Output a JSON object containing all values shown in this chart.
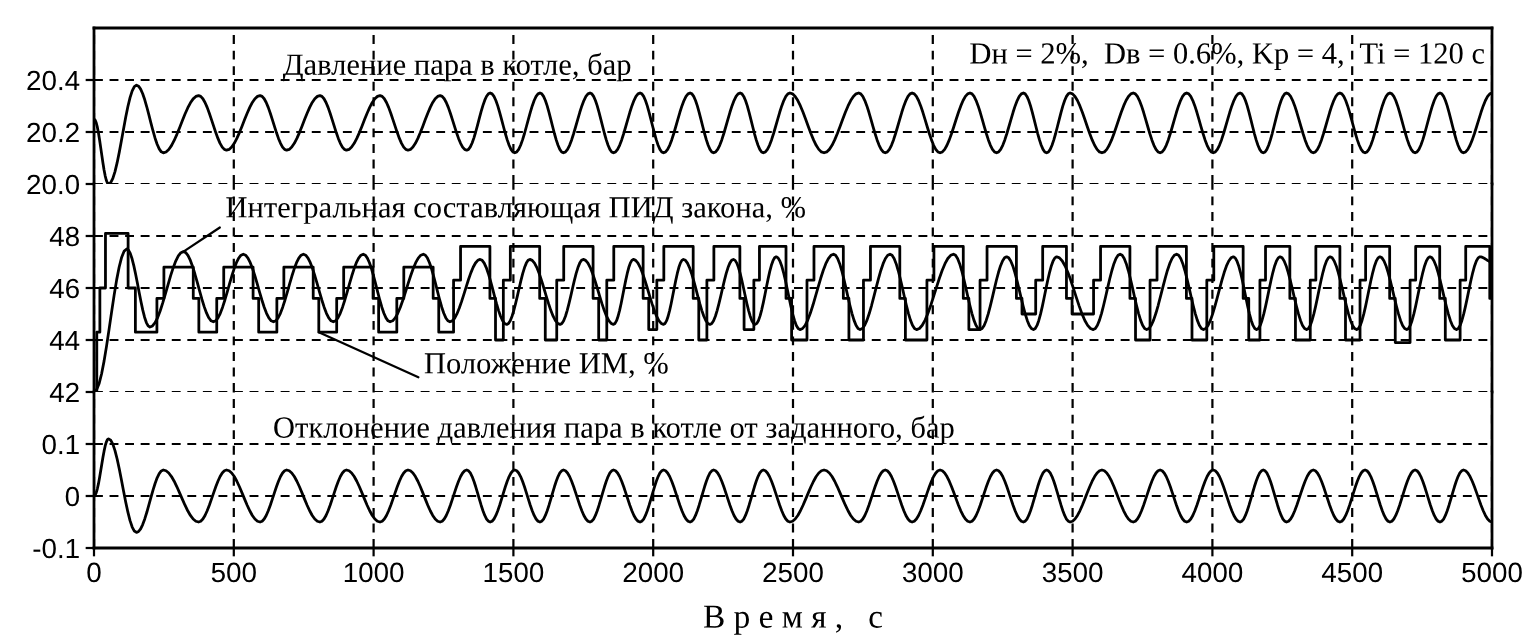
{
  "chart_data": [
    {
      "type": "line",
      "xlim": [
        0,
        5000
      ],
      "xticks": [
        0,
        500,
        1000,
        1500,
        2000,
        2500,
        3000,
        3500,
        4000,
        4500,
        5000
      ],
      "ylim": [
        20.0,
        20.6
      ],
      "yticks": [
        {
          "value": 20.0,
          "label": "20.0"
        },
        20.2,
        20.4
      ],
      "tick_labels": "y",
      "grid": true,
      "annotations": [
        "Dн = 2%,  Dв = 0.6%, Kp = 4,  Ti = 120 с"
      ],
      "series": [
        {
          "name": "Давление пара в котле, бар",
          "color": "#000000",
          "x": [
            0,
            52,
            152,
            248,
            374,
            474,
            594,
            689,
            808,
            903,
            1023,
            1123,
            1238,
            1333,
            1417,
            1505,
            1595,
            1679,
            1774,
            1858,
            1953,
            2037,
            2132,
            2216,
            2311,
            2394,
            2489,
            2611,
            2735,
            2830,
            2926,
            3026,
            3133,
            3228,
            3324,
            3407,
            3491,
            3605,
            3717,
            3813,
            3908,
            4003,
            4099,
            4182,
            4265,
            4361,
            4456,
            4546,
            4635,
            4725,
            4814,
            4898,
            5000
          ],
          "values": [
            20.25,
            20.0,
            20.38,
            20.12,
            20.34,
            20.13,
            20.34,
            20.13,
            20.34,
            20.13,
            20.34,
            20.13,
            20.34,
            20.13,
            20.35,
            20.12,
            20.35,
            20.12,
            20.35,
            20.12,
            20.35,
            20.12,
            20.35,
            20.12,
            20.35,
            20.12,
            20.35,
            20.12,
            20.35,
            20.12,
            20.35,
            20.12,
            20.35,
            20.12,
            20.35,
            20.12,
            20.35,
            20.12,
            20.35,
            20.12,
            20.35,
            20.12,
            20.35,
            20.12,
            20.35,
            20.12,
            20.35,
            20.12,
            20.35,
            20.12,
            20.35,
            20.12,
            20.35
          ]
        }
      ]
    },
    {
      "type": "line",
      "xlim": [
        0,
        5000
      ],
      "xticks": [
        0,
        500,
        1000,
        1500,
        2000,
        2500,
        3000,
        3500,
        4000,
        4500,
        5000
      ],
      "ylim": [
        42,
        50
      ],
      "yticks": [
        42,
        44,
        46,
        48
      ],
      "tick_labels": "y",
      "grid": true,
      "series": [
        {
          "name": "Интегральная составляющая ПИД закона, %",
          "color": "#000000",
          "x": [
            0,
            117,
            200,
            320,
            427,
            534,
            642,
            749,
            856,
            963,
            1059,
            1178,
            1273,
            1381,
            1476,
            1559,
            1667,
            1750,
            1858,
            1929,
            2037,
            2108,
            2203,
            2287,
            2365,
            2440,
            2525,
            2645,
            2740,
            2847,
            2942,
            3074,
            3169,
            3264,
            3360,
            3443,
            3574,
            3670,
            3765,
            3872,
            3968,
            4075,
            4158,
            4242,
            4337,
            4421,
            4516,
            4599,
            4695,
            4778,
            4873,
            4957,
            5000
          ],
          "values": [
            42.0,
            47.5,
            44.5,
            47.4,
            44.7,
            47.3,
            44.7,
            47.3,
            44.7,
            47.3,
            44.7,
            47.3,
            44.7,
            47.1,
            44.6,
            47.1,
            44.6,
            47.1,
            44.6,
            47.1,
            44.6,
            47.1,
            44.6,
            47.1,
            44.6,
            47.2,
            44.4,
            47.3,
            44.4,
            47.3,
            44.4,
            47.3,
            44.4,
            47.2,
            44.4,
            47.2,
            44.4,
            47.3,
            44.4,
            47.3,
            44.4,
            47.2,
            44.4,
            47.2,
            44.4,
            47.2,
            44.4,
            47.2,
            44.4,
            47.2,
            44.4,
            47.2,
            47.0
          ]
        },
        {
          "name": "Положение ИМ, %",
          "type": "step",
          "color": "#000000",
          "x": [
            0,
            10,
            21,
            41,
            122,
            148,
            225,
            250,
            355,
            375,
            439,
            464,
            569,
            589,
            654,
            679,
            784,
            804,
            868,
            893,
            998,
            1018,
            1083,
            1108,
            1213,
            1233,
            1286,
            1311,
            1416,
            1436,
            1464,
            1489,
            1594,
            1614,
            1655,
            1680,
            1785,
            1805,
            1834,
            1859,
            1964,
            1984,
            2013,
            2038,
            2143,
            2163,
            2192,
            2217,
            2310,
            2325,
            2360,
            2380,
            2475,
            2495,
            2550,
            2575,
            2680,
            2700,
            2752,
            2777,
            2882,
            2902,
            2979,
            3004,
            3109,
            3129,
            3169,
            3194,
            3299,
            3319,
            3368,
            3393,
            3478,
            3498,
            3575,
            3600,
            3705,
            3725,
            3777,
            3802,
            3907,
            3927,
            3980,
            4005,
            4110,
            4130,
            4170,
            4190,
            4277,
            4297,
            4350,
            4370,
            4456,
            4476,
            4528,
            4548,
            4634,
            4654,
            4707,
            4727,
            4813,
            4833,
            4886,
            4906,
            4992,
            5000
          ],
          "values": [
            42.0,
            44.3,
            46.0,
            48.1,
            46.0,
            44.3,
            45.6,
            46.8,
            45.6,
            44.3,
            45.6,
            46.8,
            45.6,
            44.3,
            45.6,
            46.8,
            45.6,
            44.3,
            45.6,
            46.8,
            45.6,
            44.3,
            45.6,
            46.8,
            45.6,
            44.3,
            46.3,
            47.6,
            45.6,
            44.0,
            46.3,
            47.6,
            45.6,
            44.0,
            46.3,
            47.6,
            45.6,
            44.0,
            46.3,
            47.6,
            45.6,
            44.4,
            46.3,
            47.6,
            45.6,
            44.0,
            46.3,
            47.6,
            45.6,
            44.4,
            46.3,
            47.6,
            45.6,
            44.0,
            46.3,
            47.6,
            45.6,
            44.0,
            46.3,
            47.6,
            45.6,
            44.0,
            46.3,
            47.6,
            45.6,
            44.4,
            46.3,
            47.6,
            45.6,
            45.0,
            46.3,
            47.6,
            45.6,
            45.0,
            46.3,
            47.6,
            45.6,
            44.0,
            46.3,
            47.6,
            45.6,
            44.0,
            46.3,
            47.6,
            45.6,
            44.0,
            46.3,
            47.6,
            45.6,
            44.0,
            46.3,
            47.6,
            45.6,
            44.0,
            46.3,
            47.6,
            45.6,
            43.9,
            46.3,
            47.6,
            45.6,
            44.0,
            46.3,
            47.6,
            45.6,
            45.6
          ]
        }
      ]
    },
    {
      "type": "line",
      "xlim": [
        0,
        5000
      ],
      "xticks": [
        0,
        500,
        1000,
        1500,
        2000,
        2500,
        3000,
        3500,
        4000,
        4500,
        5000
      ],
      "ylim": [
        -0.1,
        0.2
      ],
      "yticks": [
        -0.1,
        0,
        0.1
      ],
      "xlabel": "В р е м я ,   с",
      "grid": true,
      "series": [
        {
          "name": "Отклонение давления пара в котле от заданного, бар",
          "color": "#000000",
          "x": [
            0,
            52,
            152,
            248,
            374,
            474,
            594,
            689,
            808,
            903,
            1023,
            1123,
            1238,
            1333,
            1417,
            1505,
            1595,
            1679,
            1774,
            1858,
            1953,
            2037,
            2132,
            2216,
            2311,
            2394,
            2489,
            2611,
            2735,
            2830,
            2926,
            3026,
            3133,
            3228,
            3324,
            3407,
            3491,
            3605,
            3717,
            3813,
            3908,
            4003,
            4099,
            4182,
            4265,
            4361,
            4456,
            4546,
            4635,
            4725,
            4814,
            4898,
            5000
          ],
          "values": [
            0,
            0.11,
            -0.07,
            0.05,
            -0.05,
            0.05,
            -0.05,
            0.05,
            -0.05,
            0.05,
            -0.05,
            0.05,
            -0.05,
            0.05,
            -0.05,
            0.05,
            -0.05,
            0.05,
            -0.05,
            0.05,
            -0.05,
            0.05,
            -0.05,
            0.05,
            -0.05,
            0.05,
            -0.05,
            0.05,
            -0.05,
            0.05,
            -0.05,
            0.05,
            -0.05,
            0.05,
            -0.05,
            0.05,
            -0.05,
            0.05,
            -0.05,
            0.05,
            -0.05,
            0.05,
            -0.05,
            0.05,
            -0.05,
            0.05,
            -0.05,
            0.05,
            -0.05,
            0.05,
            -0.05,
            0.05,
            -0.05
          ]
        }
      ]
    }
  ]
}
